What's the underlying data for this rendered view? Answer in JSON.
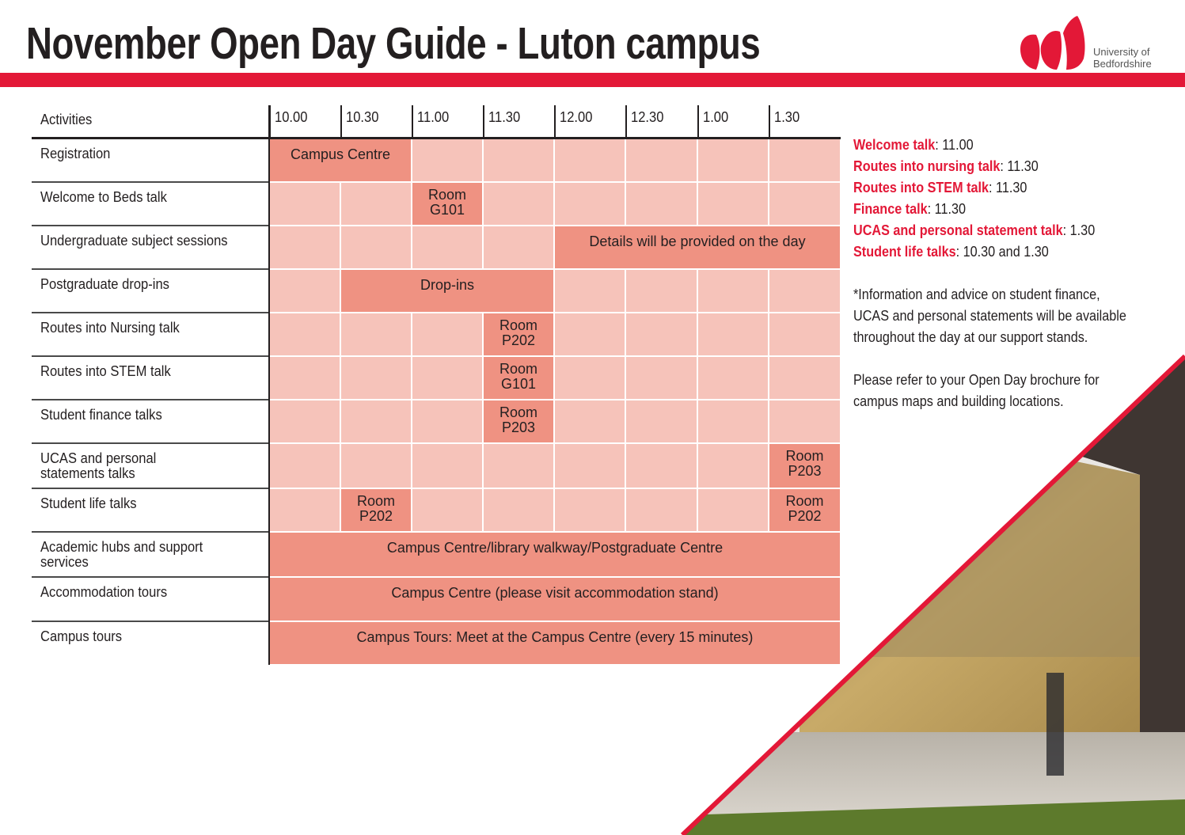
{
  "header": {
    "title": "November Open Day Guide - Luton campus",
    "logo": [
      "University of",
      "Bedfordshire"
    ]
  },
  "table": {
    "columns": [
      "Activities",
      "10.00",
      "10.30",
      "11.00",
      "11.30",
      "12.00",
      "12.30",
      "1.00",
      "1.30"
    ],
    "rows": [
      {
        "activity": [
          "Registration"
        ],
        "cells": [
          {
            "text": [
              "Campus Centre"
            ],
            "to": "10.30"
          },
          null,
          null,
          null,
          null,
          null,
          null
        ]
      },
      {
        "activity": [
          "Welcome to Beds talk"
        ],
        "cells": [
          null,
          null,
          {
            "text": [
              "Room",
              "G101"
            ]
          },
          null,
          null,
          null,
          null,
          null
        ]
      },
      {
        "activity": [
          "Undergraduate subject sessions"
        ],
        "cells": [
          null,
          null,
          null,
          null,
          {
            "text": [
              "Details will be provided on the day"
            ],
            "to": "1.30"
          }
        ]
      },
      {
        "activity": [
          "Postgraduate drop-ins"
        ],
        "cells": [
          null,
          {
            "text": [
              "Drop-ins"
            ],
            "to": "11.30"
          },
          null,
          null,
          null,
          null
        ]
      },
      {
        "activity": [
          "Routes into Nursing talk"
        ],
        "cells": [
          null,
          null,
          null,
          {
            "text": [
              "Room",
              "P202"
            ]
          },
          null,
          null,
          null,
          null
        ]
      },
      {
        "activity": [
          "Routes into STEM talk"
        ],
        "cells": [
          null,
          null,
          null,
          {
            "text": [
              "Room",
              "G101"
            ]
          },
          null,
          null,
          null,
          null
        ]
      },
      {
        "activity": [
          "Student finance talks"
        ],
        "cells": [
          null,
          null,
          null,
          {
            "text": [
              "Room",
              "P203"
            ]
          },
          null,
          null,
          null,
          null
        ]
      },
      {
        "activity": [
          "UCAS and personal",
          "statements talks"
        ],
        "cells": [
          null,
          null,
          null,
          null,
          null,
          null,
          null,
          {
            "text": [
              "Room",
              "P203"
            ]
          }
        ]
      },
      {
        "activity": [
          "Student life talks"
        ],
        "cells": [
          null,
          {
            "text": [
              "Room",
              "P202"
            ]
          },
          null,
          null,
          null,
          null,
          null,
          {
            "text": [
              "Room",
              "P202"
            ]
          }
        ]
      },
      {
        "activity": [
          "Academic hubs and support",
          "services"
        ],
        "cells": [
          {
            "text": [
              "Campus Centre/library walkway/Postgraduate Centre"
            ],
            "to": "1.30"
          }
        ]
      },
      {
        "activity": [
          "Accommodation tours"
        ],
        "cells": [
          {
            "text": [
              "Campus Centre (please visit accommodation stand)"
            ],
            "to": "1.30"
          }
        ]
      },
      {
        "activity": [
          "Campus tours"
        ],
        "cells": [
          {
            "text": [
              "Campus Tours: Meet at the Campus Centre (every 15 minutes)"
            ],
            "to": "1.30"
          }
        ]
      }
    ]
  },
  "notes": {
    "talks": [
      {
        "name": "Welcome talk",
        "detail": ": 11.00"
      },
      {
        "name": "Routes into nursing talk",
        "detail": ": 11.30"
      },
      {
        "name": "Routes into STEM talk",
        "detail": ": 11.30"
      },
      {
        "name": "Finance talk",
        "detail": ": 11.30"
      },
      {
        "name": "UCAS and personal statement talk",
        "detail": ": 1.30"
      },
      {
        "name": "Student life talks",
        "detail": ": 10.30 and 1.30"
      }
    ],
    "paragraphs": [
      "*Information and advice on student finance, UCAS and personal statements will be available throughout the day at our support stands.",
      "Please refer to your Open Day brochure for campus maps and building locations."
    ]
  }
}
